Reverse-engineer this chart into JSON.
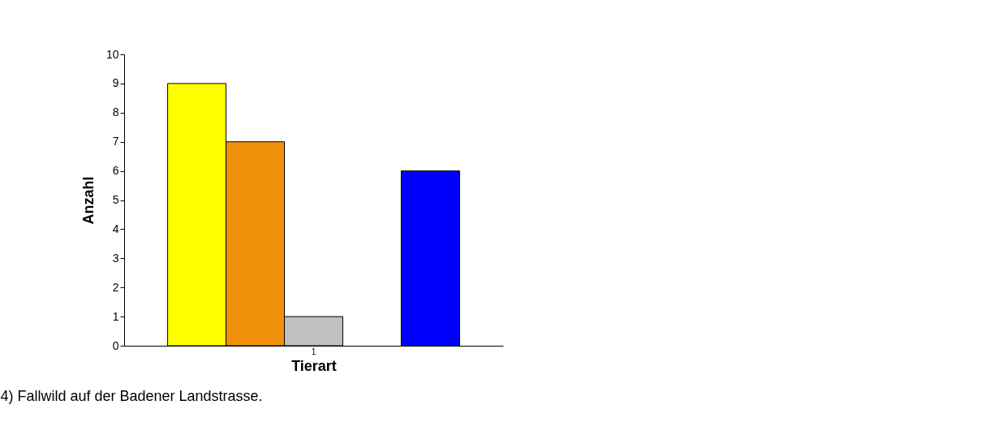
{
  "chart_data": {
    "type": "bar",
    "xlabel": "Tierart",
    "ylabel": "Anzahl",
    "categories": [
      "1"
    ],
    "series": [
      {
        "color": "#ffff00",
        "values": [
          9
        ]
      },
      {
        "color": "#f0900a",
        "values": [
          7
        ]
      },
      {
        "color": "#c0c0c0",
        "values": [
          1
        ]
      },
      {
        "color": "#ffffff",
        "values": [
          null
        ]
      },
      {
        "color": "#0000ff",
        "values": [
          6
        ]
      }
    ],
    "ylim": [
      0,
      10
    ],
    "yticks": [
      0,
      1,
      2,
      3,
      4,
      5,
      6,
      7,
      8,
      9,
      10
    ],
    "grid": false,
    "legend": false,
    "annotations": [
      "4) Fallwild auf der Badener Landstrasse."
    ]
  }
}
